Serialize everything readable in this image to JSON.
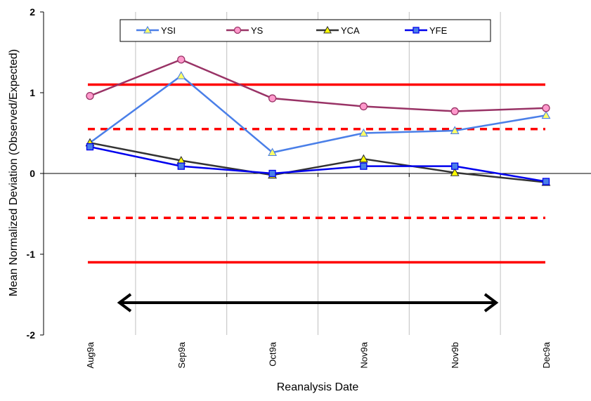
{
  "chart_data": {
    "type": "line",
    "xlabel": "Reanalysis Date",
    "ylabel": "Mean Normalized Deviation (Observed/Expected)",
    "categories": [
      "Aug9a",
      "Sep9a",
      "Oct9a",
      "Nov9a",
      "Nov9b",
      "Dec9a"
    ],
    "ylim": [
      -2,
      2
    ],
    "yticks": [
      "-2",
      "-1",
      "0",
      "1",
      "2"
    ],
    "series": [
      {
        "name": "YSI",
        "color": "#4a7fe8",
        "marker": "triangle",
        "marker_fill": "#ffff66",
        "values": [
          0.38,
          1.21,
          0.26,
          0.5,
          0.53,
          0.72
        ]
      },
      {
        "name": "YS",
        "color": "#993366",
        "marker": "circle",
        "marker_fill": "#ff99cc",
        "values": [
          0.96,
          1.41,
          0.93,
          0.83,
          0.77,
          0.81
        ]
      },
      {
        "name": "YCA",
        "color": "#333333",
        "marker": "triangle",
        "marker_fill": "#ffff00",
        "values": [
          0.38,
          0.16,
          -0.02,
          0.18,
          0.01,
          -0.11
        ]
      },
      {
        "name": "YFE",
        "color": "#0000ee",
        "marker": "square",
        "marker_fill": "#4a7fe8",
        "values": [
          0.33,
          0.09,
          0.0,
          0.09,
          0.09,
          -0.1
        ]
      }
    ],
    "reference_lines": [
      {
        "value": 1.1,
        "style": "solid",
        "color": "#ff0000"
      },
      {
        "value": 0.55,
        "style": "dashed",
        "color": "#ff0000"
      },
      {
        "value": -0.55,
        "style": "dashed",
        "color": "#ff0000"
      },
      {
        "value": -1.1,
        "style": "solid",
        "color": "#ff0000"
      }
    ],
    "arrow": {
      "from_category": 0.3,
      "to_category": 4.55,
      "y": -1.6,
      "style": "double-headed",
      "color": "#000000"
    },
    "grid": "vertical",
    "legend_position": "top"
  }
}
